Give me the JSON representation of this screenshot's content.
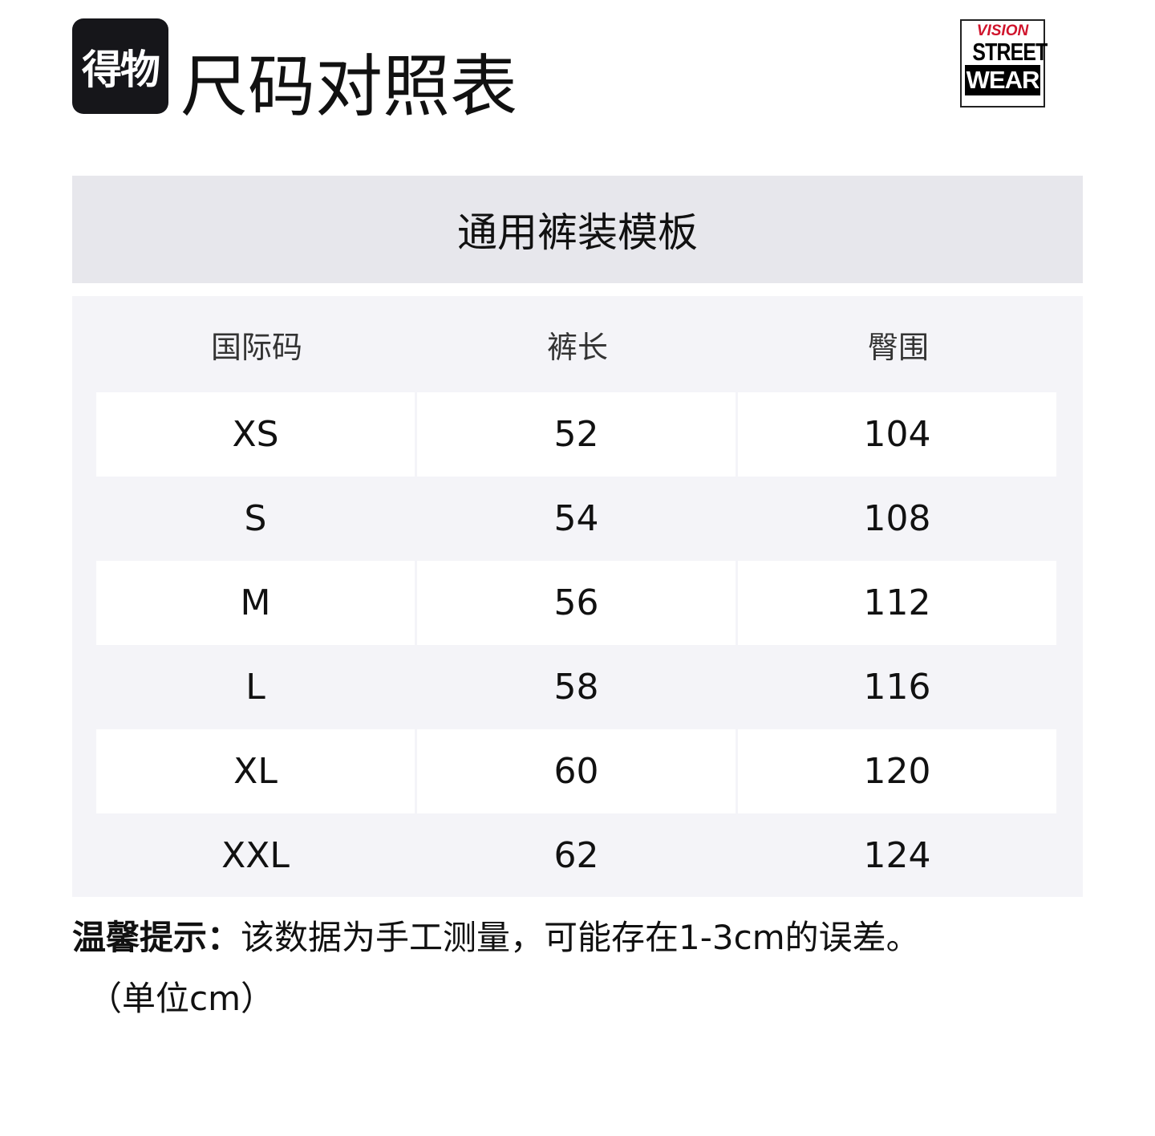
{
  "header": {
    "app_logo_text": "得物",
    "title": "尺码对照表",
    "brand_logo": {
      "line1": "VISION",
      "line2": "STREET",
      "line3": "WEAR",
      "colors": {
        "red": "#d0142c",
        "black": "#000000"
      }
    }
  },
  "template_title": "通用裤装模板",
  "table": {
    "columns": [
      "国际码",
      "裤长",
      "臀围"
    ],
    "rows": [
      [
        "XS",
        "52",
        "104"
      ],
      [
        "S",
        "54",
        "108"
      ],
      [
        "M",
        "56",
        "112"
      ],
      [
        "L",
        "58",
        "116"
      ],
      [
        "XL",
        "60",
        "120"
      ],
      [
        "XXL",
        "62",
        "124"
      ]
    ]
  },
  "note": {
    "label": "温馨提示：",
    "text": "该数据为手工测量，可能存在1-3cm的误差。",
    "unit": "（单位cm）"
  }
}
